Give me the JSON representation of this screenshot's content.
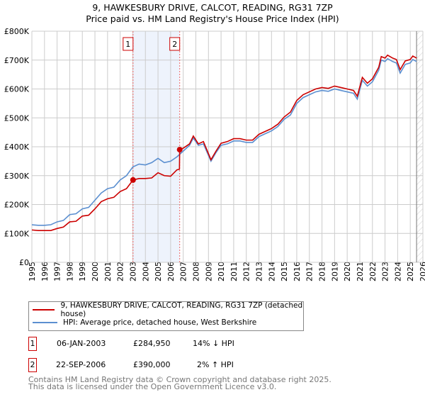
{
  "title": "9, HAWKESBURY DRIVE, CALCOT, READING, RG31 7ZP",
  "subtitle": "Price paid vs. HM Land Registry's House Price Index (HPI)",
  "chart_data": {
    "type": "line",
    "title": "9, HAWKESBURY DRIVE, CALCOT, READING, RG31 7ZP",
    "subtitle": "Price paid vs. HM Land Registry's House Price Index (HPI)",
    "xlim": [
      1995,
      2026
    ],
    "ylim": [
      0,
      800000
    ],
    "x_ticks": [
      "1995",
      "1996",
      "1997",
      "1998",
      "1999",
      "2000",
      "2001",
      "2002",
      "2003",
      "2004",
      "2005",
      "2006",
      "2007",
      "2008",
      "2009",
      "2010",
      "2011",
      "2012",
      "2013",
      "2014",
      "2015",
      "2016",
      "2017",
      "2018",
      "2019",
      "2020",
      "2021",
      "2022",
      "2023",
      "2024",
      "2025",
      "2026"
    ],
    "y_ticks": [
      {
        "v": 0,
        "l": "£0"
      },
      {
        "v": 100000,
        "l": "£100K"
      },
      {
        "v": 200000,
        "l": "£200K"
      },
      {
        "v": 300000,
        "l": "£300K"
      },
      {
        "v": 400000,
        "l": "£400K"
      },
      {
        "v": 500000,
        "l": "£500K"
      },
      {
        "v": 600000,
        "l": "£600K"
      },
      {
        "v": 700000,
        "l": "£700K"
      },
      {
        "v": 800000,
        "l": "£800K"
      }
    ],
    "grid": true,
    "series": [
      {
        "name": "HPI: Average price, detached house, West Berkshire",
        "color": "#5b8fd0",
        "x": [
          1995,
          1995.5,
          1996,
          1996.5,
          1997,
          1997.5,
          1998,
          1998.5,
          1999,
          1999.5,
          2000,
          2000.5,
          2001,
          2001.5,
          2002,
          2002.5,
          2003,
          2003.5,
          2004,
          2004.5,
          2005,
          2005.5,
          2006,
          2006.5,
          2007,
          2007.5,
          2007.8,
          2008.2,
          2008.6,
          2009.2,
          2009.6,
          2010,
          2010.5,
          2011,
          2011.5,
          2012,
          2012.5,
          2013,
          2013.5,
          2014,
          2014.5,
          2015,
          2015.5,
          2016,
          2016.5,
          2017,
          2017.5,
          2018,
          2018.5,
          2019,
          2019.5,
          2020,
          2020.5,
          2020.8,
          2021.2,
          2021.6,
          2022,
          2022.5,
          2022.7,
          2023,
          2023.2,
          2023.6,
          2023.9,
          2024.2,
          2024.6,
          2025,
          2025.2,
          2025.5
        ],
        "y": [
          130000,
          128000,
          128000,
          130000,
          140000,
          145000,
          165000,
          168000,
          185000,
          190000,
          215000,
          240000,
          255000,
          260000,
          285000,
          300000,
          330000,
          340000,
          337000,
          345000,
          360000,
          345000,
          350000,
          365000,
          385000,
          405000,
          430000,
          405000,
          410000,
          350000,
          380000,
          405000,
          410000,
          420000,
          420000,
          415000,
          415000,
          435000,
          445000,
          455000,
          470000,
          495000,
          510000,
          550000,
          570000,
          580000,
          590000,
          595000,
          592000,
          600000,
          595000,
          590000,
          585000,
          565000,
          630000,
          610000,
          625000,
          665000,
          700000,
          695000,
          705000,
          695000,
          690000,
          655000,
          685000,
          690000,
          702000,
          695000
        ]
      },
      {
        "name": "9, HAWKESBURY DRIVE, CALCOT, READING, RG31 7ZP (detached house)",
        "color": "#cc0000",
        "x": [
          1995,
          1995.5,
          1996,
          1996.5,
          1997,
          1997.5,
          1998,
          1998.5,
          1999,
          1999.5,
          2000,
          2000.5,
          2001,
          2001.5,
          2002,
          2002.5,
          2003.02,
          2003.5,
          2004,
          2004.5,
          2005,
          2005.5,
          2006,
          2006.5,
          2006.7,
          2006.72,
          2007,
          2007.5,
          2007.8,
          2008.2,
          2008.6,
          2009.2,
          2009.6,
          2010,
          2010.5,
          2011,
          2011.5,
          2012,
          2012.5,
          2013,
          2013.5,
          2014,
          2014.5,
          2015,
          2015.5,
          2016,
          2016.5,
          2017,
          2017.5,
          2018,
          2018.5,
          2019,
          2019.5,
          2020,
          2020.5,
          2020.8,
          2021.2,
          2021.6,
          2022,
          2022.5,
          2022.7,
          2023,
          2023.2,
          2023.6,
          2023.9,
          2024.2,
          2024.6,
          2025,
          2025.2,
          2025.5
        ],
        "y": [
          112000,
          110000,
          110000,
          110000,
          117000,
          122000,
          140000,
          142000,
          160000,
          163000,
          185000,
          210000,
          220000,
          225000,
          245000,
          255000,
          284950,
          290000,
          290000,
          292000,
          310000,
          300000,
          298000,
          320000,
          322000,
          390000,
          395000,
          410000,
          437000,
          410000,
          418000,
          355000,
          385000,
          412000,
          418000,
          428000,
          428000,
          423000,
          423000,
          443000,
          453000,
          463000,
          478000,
          503000,
          520000,
          560000,
          580000,
          590000,
          600000,
          605000,
          602000,
          610000,
          605000,
          600000,
          595000,
          575000,
          640000,
          620000,
          635000,
          675000,
          712000,
          707000,
          717000,
          707000,
          702000,
          667000,
          697000,
          702000,
          714000,
          707000
        ]
      }
    ],
    "sales": [
      {
        "label": "1",
        "x": 2003.02,
        "price": 284950
      },
      {
        "label": "2",
        "x": 2006.72,
        "price": 390000
      }
    ],
    "shaded_range": [
      2003.02,
      2006.72
    ],
    "hatched_from": 2025.5,
    "legend_position": "below"
  },
  "legend": {
    "property": "9, HAWKESBURY DRIVE, CALCOT, READING, RG31 7ZP (detached house)",
    "hpi": "HPI: Average price, detached house, West Berkshire"
  },
  "transactions": [
    {
      "num": "1",
      "date": "06-JAN-2003",
      "price": "£284,950",
      "delta": "14% ↓ HPI"
    },
    {
      "num": "2",
      "date": "22-SEP-2006",
      "price": "£390,000",
      "delta": "2% ↑ HPI"
    }
  ],
  "footer": {
    "line1": "Contains HM Land Registry data © Crown copyright and database right 2025.",
    "line2": "This data is licensed under the Open Government Licence v3.0."
  }
}
